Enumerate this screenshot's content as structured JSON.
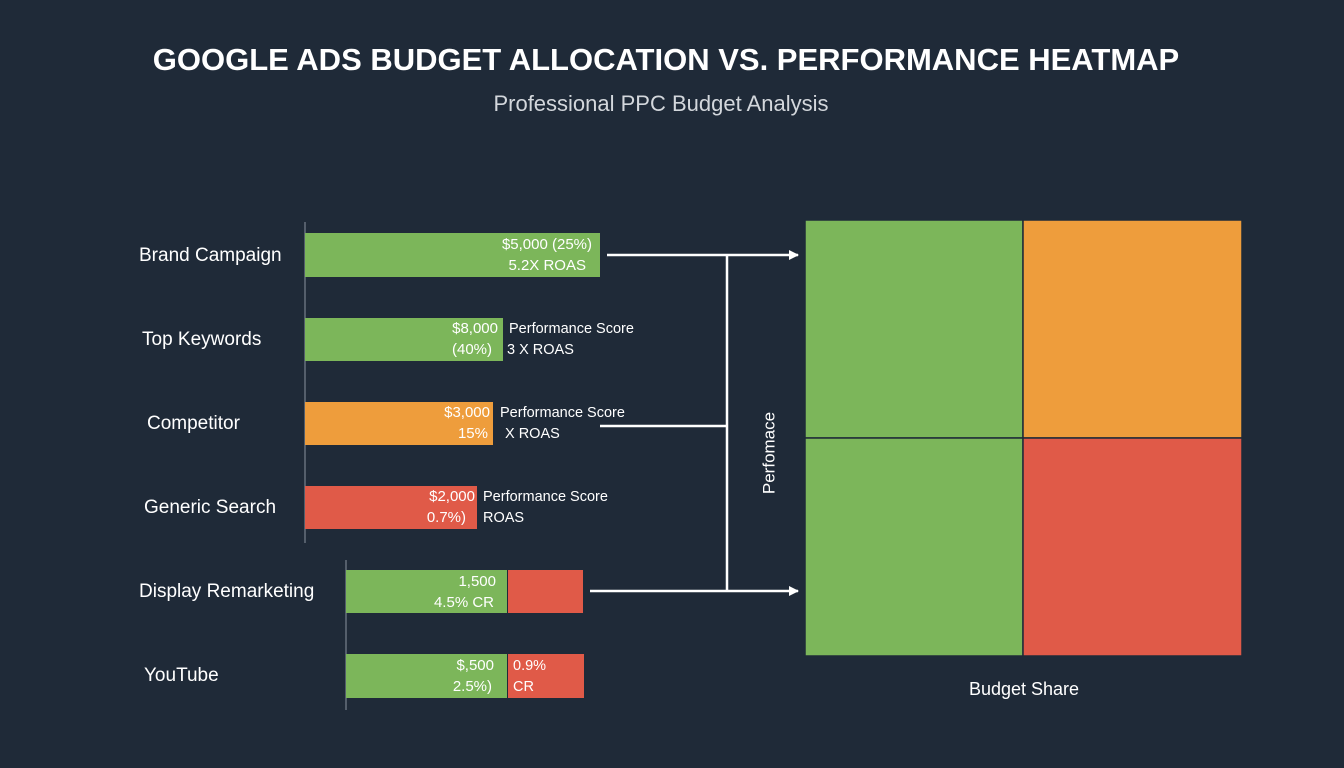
{
  "header": {
    "title": "GOOGLE ADS BUDGET ALLOCATION VS. PERFORMANCE HEATMAP",
    "subtitle": "Professional PPC Budget Analysis"
  },
  "rows": [
    {
      "label": "Brand Campaign",
      "inside": [
        "$5,000 (25%)",
        "5.2X ROAS"
      ]
    },
    {
      "label": "Top Keywords",
      "inside": [
        "$8,000",
        "(40%)"
      ],
      "beside": [
        "Performance Score",
        "3 X ROAS"
      ]
    },
    {
      "label": "Competitor",
      "inside": [
        "$3,000",
        "15%"
      ],
      "beside": [
        "Performance Score",
        "X ROAS"
      ]
    },
    {
      "label": "Generic Search",
      "inside": [
        "$2,000",
        "0.7%)"
      ],
      "beside": [
        "Performance Score",
        "ROAS"
      ]
    },
    {
      "label": "Display Remarketing",
      "inside": [
        "1,500",
        "4.5% CR"
      ]
    },
    {
      "label": "YouTube",
      "inside": [
        "$,500",
        "2.5%)"
      ],
      "beside": [
        "0.9%",
        "CR"
      ]
    }
  ],
  "heatmap": {
    "y_label": "Perfomace",
    "x_label": "Budget Share"
  }
}
